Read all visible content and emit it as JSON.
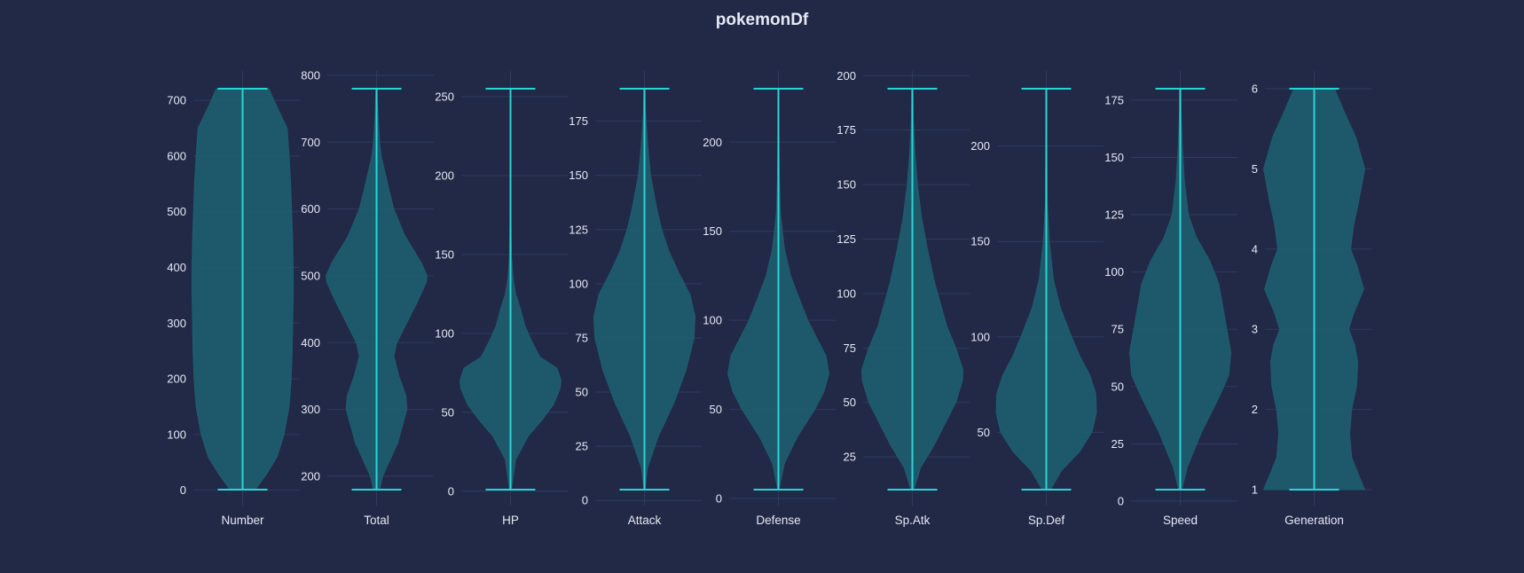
{
  "chart_data": {
    "type": "violin",
    "title": "pokemonDf",
    "colors": {
      "background": "#212946",
      "violin_fill": "#1f5c6e",
      "violin_line": "#2bd4d4",
      "text": "#e6e9f5",
      "grid": "#2f3a5e"
    },
    "grid": true,
    "panels": [
      {
        "name": "Number",
        "min": 1,
        "max": 721,
        "ylim": [
          0,
          750
        ],
        "ticks": [
          "0",
          "100",
          "200",
          "300",
          "400",
          "500",
          "600",
          "700"
        ],
        "density": [
          [
            1,
            0.25
          ],
          [
            30,
            0.48
          ],
          [
            60,
            0.68
          ],
          [
            100,
            0.82
          ],
          [
            150,
            0.92
          ],
          [
            200,
            0.96
          ],
          [
            250,
            0.98
          ],
          [
            300,
            0.99
          ],
          [
            350,
            1.0
          ],
          [
            400,
            1.0
          ],
          [
            450,
            0.99
          ],
          [
            500,
            0.97
          ],
          [
            550,
            0.95
          ],
          [
            600,
            0.92
          ],
          [
            650,
            0.88
          ],
          [
            700,
            0.62
          ],
          [
            721,
            0.52
          ]
        ]
      },
      {
        "name": "Total",
        "min": 180,
        "max": 780,
        "ylim": [
          180,
          800
        ],
        "ticks": [
          "200",
          "300",
          "400",
          "500",
          "600",
          "700",
          "800"
        ],
        "density": [
          [
            180,
            0.06
          ],
          [
            200,
            0.12
          ],
          [
            250,
            0.42
          ],
          [
            300,
            0.6
          ],
          [
            320,
            0.58
          ],
          [
            350,
            0.44
          ],
          [
            380,
            0.34
          ],
          [
            400,
            0.4
          ],
          [
            430,
            0.6
          ],
          [
            460,
            0.8
          ],
          [
            490,
            0.98
          ],
          [
            500,
            1.0
          ],
          [
            520,
            0.88
          ],
          [
            560,
            0.56
          ],
          [
            600,
            0.34
          ],
          [
            630,
            0.24
          ],
          [
            650,
            0.18
          ],
          [
            680,
            0.09
          ],
          [
            700,
            0.06
          ],
          [
            740,
            0.03
          ],
          [
            780,
            0.01
          ]
        ]
      },
      {
        "name": "HP",
        "min": 1,
        "max": 255,
        "ylim": [
          0,
          260
        ],
        "ticks": [
          "0",
          "50",
          "100",
          "150",
          "200",
          "250"
        ],
        "density": [
          [
            1,
            0.02
          ],
          [
            20,
            0.1
          ],
          [
            35,
            0.35
          ],
          [
            45,
            0.62
          ],
          [
            55,
            0.85
          ],
          [
            65,
            0.98
          ],
          [
            70,
            1.0
          ],
          [
            78,
            0.92
          ],
          [
            85,
            0.58
          ],
          [
            95,
            0.42
          ],
          [
            105,
            0.28
          ],
          [
            115,
            0.2
          ],
          [
            125,
            0.1
          ],
          [
            135,
            0.05
          ],
          [
            150,
            0.02
          ],
          [
            170,
            0.01
          ],
          [
            200,
            0.006
          ],
          [
            255,
            0.004
          ]
        ]
      },
      {
        "name": "Attack",
        "min": 5,
        "max": 190,
        "ylim": [
          0,
          195
        ],
        "ticks": [
          "0",
          "25",
          "50",
          "75",
          "100",
          "125",
          "150",
          "175"
        ],
        "density": [
          [
            5,
            0.01
          ],
          [
            15,
            0.06
          ],
          [
            30,
            0.28
          ],
          [
            45,
            0.58
          ],
          [
            60,
            0.82
          ],
          [
            75,
            0.98
          ],
          [
            85,
            1.0
          ],
          [
            95,
            0.9
          ],
          [
            105,
            0.68
          ],
          [
            115,
            0.48
          ],
          [
            125,
            0.34
          ],
          [
            135,
            0.24
          ],
          [
            150,
            0.12
          ],
          [
            165,
            0.06
          ],
          [
            180,
            0.02
          ],
          [
            190,
            0.01
          ]
        ]
      },
      {
        "name": "Defense",
        "min": 5,
        "max": 230,
        "ylim": [
          0,
          235
        ],
        "ticks": [
          "0",
          "50",
          "100",
          "150",
          "200"
        ],
        "density": [
          [
            5,
            0.01
          ],
          [
            20,
            0.12
          ],
          [
            35,
            0.38
          ],
          [
            50,
            0.72
          ],
          [
            60,
            0.9
          ],
          [
            70,
            1.0
          ],
          [
            80,
            0.94
          ],
          [
            90,
            0.76
          ],
          [
            100,
            0.58
          ],
          [
            110,
            0.44
          ],
          [
            125,
            0.24
          ],
          [
            140,
            0.12
          ],
          [
            160,
            0.04
          ],
          [
            180,
            0.02
          ],
          [
            200,
            0.01
          ],
          [
            230,
            0.005
          ]
        ]
      },
      {
        "name": "Sp.Atk",
        "min": 10,
        "max": 194,
        "ylim": [
          5,
          200
        ],
        "ticks": [
          "25",
          "50",
          "75",
          "100",
          "125",
          "150",
          "175",
          "200"
        ],
        "density": [
          [
            10,
            0.03
          ],
          [
            20,
            0.16
          ],
          [
            30,
            0.42
          ],
          [
            40,
            0.64
          ],
          [
            50,
            0.86
          ],
          [
            60,
            0.99
          ],
          [
            65,
            1.0
          ],
          [
            75,
            0.86
          ],
          [
            85,
            0.68
          ],
          [
            95,
            0.56
          ],
          [
            105,
            0.44
          ],
          [
            120,
            0.3
          ],
          [
            135,
            0.18
          ],
          [
            150,
            0.1
          ],
          [
            165,
            0.05
          ],
          [
            180,
            0.02
          ],
          [
            194,
            0.01
          ]
        ]
      },
      {
        "name": "Sp.Def",
        "min": 20,
        "max": 230,
        "ylim": [
          20,
          235
        ],
        "ticks": [
          "50",
          "100",
          "150",
          "200"
        ],
        "density": [
          [
            20,
            0.08
          ],
          [
            30,
            0.3
          ],
          [
            40,
            0.66
          ],
          [
            50,
            0.9
          ],
          [
            60,
            0.99
          ],
          [
            70,
            0.98
          ],
          [
            80,
            0.86
          ],
          [
            90,
            0.66
          ],
          [
            100,
            0.5
          ],
          [
            115,
            0.28
          ],
          [
            130,
            0.14
          ],
          [
            150,
            0.06
          ],
          [
            170,
            0.02
          ],
          [
            200,
            0.01
          ],
          [
            230,
            0.005
          ]
        ]
      },
      {
        "name": "Speed",
        "min": 5,
        "max": 180,
        "ylim": [
          0,
          185
        ],
        "ticks": [
          "0",
          "25",
          "50",
          "75",
          "100",
          "125",
          "150",
          "175"
        ],
        "density": [
          [
            5,
            0.03
          ],
          [
            15,
            0.14
          ],
          [
            30,
            0.42
          ],
          [
            45,
            0.76
          ],
          [
            55,
            0.96
          ],
          [
            65,
            1.0
          ],
          [
            75,
            0.92
          ],
          [
            85,
            0.84
          ],
          [
            95,
            0.76
          ],
          [
            105,
            0.58
          ],
          [
            115,
            0.32
          ],
          [
            125,
            0.16
          ],
          [
            140,
            0.08
          ],
          [
            155,
            0.04
          ],
          [
            170,
            0.015
          ],
          [
            180,
            0.01
          ]
        ]
      },
      {
        "name": "Generation",
        "min": 1,
        "max": 6,
        "ylim": [
          1,
          6.1
        ],
        "ticks": [
          "1",
          "2",
          "3",
          "4",
          "5",
          "6"
        ],
        "density": [
          [
            1,
            1.0
          ],
          [
            1.15,
            0.9
          ],
          [
            1.4,
            0.74
          ],
          [
            1.7,
            0.7
          ],
          [
            2.0,
            0.74
          ],
          [
            2.3,
            0.84
          ],
          [
            2.6,
            0.86
          ],
          [
            2.8,
            0.8
          ],
          [
            3.0,
            0.68
          ],
          [
            3.2,
            0.78
          ],
          [
            3.5,
            0.98
          ],
          [
            3.8,
            0.84
          ],
          [
            4.0,
            0.72
          ],
          [
            4.3,
            0.78
          ],
          [
            4.6,
            0.88
          ],
          [
            5.0,
            1.0
          ],
          [
            5.4,
            0.82
          ],
          [
            5.7,
            0.6
          ],
          [
            6.0,
            0.4
          ]
        ]
      }
    ]
  }
}
